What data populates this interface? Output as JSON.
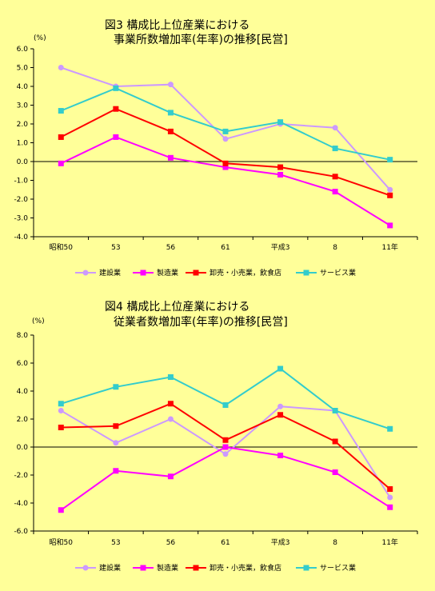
{
  "chart_data": [
    {
      "type": "line",
      "title_line1": "図3 構成比上位産業における",
      "title_line2": "事業所数増加率(年率)の推移[民営]",
      "unit": "(%)",
      "xlabel": "",
      "ylabel": "",
      "categories": [
        "昭和50",
        "53",
        "56",
        "61",
        "平成3",
        "8",
        "11年"
      ],
      "ylim": [
        -4.0,
        6.0
      ],
      "yticks": [
        "6.0",
        "5.0",
        "4.0",
        "3.0",
        "2.0",
        "1.0",
        "0.0",
        "-1.0",
        "-2.0",
        "-3.0",
        "-4.0"
      ],
      "legend_position": "bottom",
      "series": [
        {
          "name": "建設業",
          "color": "#CC99FF",
          "marker": "circle",
          "values": [
            5.0,
            4.0,
            4.1,
            1.2,
            2.0,
            1.8,
            -1.5
          ]
        },
        {
          "name": "製造業",
          "color": "#FF00FF",
          "marker": "square",
          "values": [
            -0.1,
            1.3,
            0.2,
            -0.3,
            -0.7,
            -1.6,
            -3.4
          ]
        },
        {
          "name": "卸売・小売業，飲食店",
          "color": "#FF0000",
          "marker": "square",
          "values": [
            1.3,
            2.8,
            1.6,
            -0.1,
            -0.3,
            -0.8,
            -1.8
          ]
        },
        {
          "name": "サービス業",
          "color": "#33CCCC",
          "marker": "square",
          "values": [
            2.7,
            3.9,
            2.6,
            1.6,
            2.1,
            0.7,
            0.1
          ]
        }
      ]
    },
    {
      "type": "line",
      "title_line1": "図4 構成比上位産業における",
      "title_line2": "従業者数増加率(年率)の推移[民営]",
      "unit": "(%)",
      "xlabel": "",
      "ylabel": "",
      "categories": [
        "昭和50",
        "53",
        "56",
        "61",
        "平成3",
        "8",
        "11年"
      ],
      "ylim": [
        -6.0,
        8.0
      ],
      "yticks": [
        "8.0",
        "6.0",
        "4.0",
        "2.0",
        "0.0",
        "-2.0",
        "-4.0",
        "-6.0"
      ],
      "legend_position": "bottom",
      "series": [
        {
          "name": "建設業",
          "color": "#CC99FF",
          "marker": "circle",
          "values": [
            2.6,
            0.3,
            2.0,
            -0.5,
            2.9,
            2.6,
            -3.6
          ]
        },
        {
          "name": "製造業",
          "color": "#FF00FF",
          "marker": "square",
          "values": [
            -4.5,
            -1.7,
            -2.1,
            0.0,
            -0.6,
            -1.8,
            -4.3
          ]
        },
        {
          "name": "卸売・小売業，飲食店",
          "color": "#FF0000",
          "marker": "square",
          "values": [
            1.4,
            1.5,
            3.1,
            0.5,
            2.3,
            0.4,
            -3.0
          ]
        },
        {
          "name": "サービス業",
          "color": "#33CCCC",
          "marker": "square",
          "values": [
            3.1,
            4.3,
            5.0,
            3.0,
            5.6,
            2.6,
            1.3
          ]
        }
      ]
    }
  ]
}
